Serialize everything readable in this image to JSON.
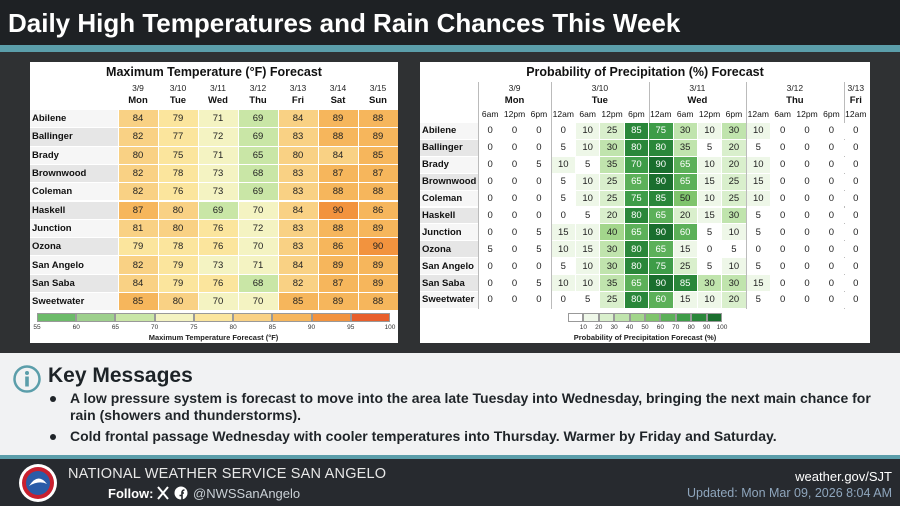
{
  "header": {
    "title": "Daily High Temperatures and Rain Chances This Week"
  },
  "temperature": {
    "title": "Maximum Temperature (°F) Forecast",
    "dates": [
      "3/9",
      "3/10",
      "3/11",
      "3/12",
      "3/13",
      "3/14",
      "3/15"
    ],
    "days": [
      "Mon",
      "Tue",
      "Wed",
      "Thu",
      "Fri",
      "Sat",
      "Sun"
    ],
    "cities": [
      "Abilene",
      "Ballinger",
      "Brady",
      "Brownwood",
      "Coleman",
      "Haskell",
      "Junction",
      "Ozona",
      "San Angelo",
      "San Saba",
      "Sweetwater"
    ],
    "rows": [
      [
        84,
        79,
        71,
        69,
        84,
        89,
        88
      ],
      [
        82,
        77,
        72,
        69,
        83,
        88,
        89
      ],
      [
        80,
        75,
        71,
        65,
        80,
        84,
        85
      ],
      [
        82,
        78,
        73,
        68,
        83,
        87,
        87
      ],
      [
        82,
        76,
        73,
        69,
        83,
        88,
        88
      ],
      [
        87,
        80,
        69,
        70,
        84,
        90,
        86
      ],
      [
        81,
        80,
        76,
        72,
        83,
        88,
        89
      ],
      [
        79,
        78,
        76,
        70,
        83,
        86,
        90
      ],
      [
        82,
        79,
        73,
        71,
        84,
        89,
        89
      ],
      [
        84,
        79,
        76,
        68,
        82,
        87,
        89
      ],
      [
        85,
        80,
        70,
        70,
        85,
        89,
        88
      ]
    ],
    "colorbar": {
      "lim": [
        55,
        100
      ],
      "ticks": [
        55,
        60,
        65,
        70,
        75,
        80,
        85,
        90,
        95,
        100
      ],
      "colors": [
        "#6dbb6a",
        "#9ed08d",
        "#c9e6a6",
        "#f4f3c2",
        "#fbe59d",
        "#f9d184",
        "#f6b65c",
        "#f2933e",
        "#e85f2c"
      ],
      "label": "Maximum Temperature Forecast (°F)"
    }
  },
  "precipitation": {
    "title": "Probability of Precipitation (%) Forecast",
    "groups": [
      {
        "date": "3/9",
        "day": "Mon",
        "times": [
          "6am",
          "12pm",
          "6pm"
        ]
      },
      {
        "date": "3/10",
        "day": "Tue",
        "times": [
          "12am",
          "6am",
          "12pm",
          "6pm"
        ]
      },
      {
        "date": "3/11",
        "day": "Wed",
        "times": [
          "12am",
          "6am",
          "12pm",
          "6pm"
        ]
      },
      {
        "date": "3/12",
        "day": "Thu",
        "times": [
          "12am",
          "6am",
          "12pm",
          "6pm"
        ]
      },
      {
        "date": "3/13",
        "day": "Fri",
        "times": [
          "12am"
        ]
      }
    ],
    "cities": [
      "Abilene",
      "Ballinger",
      "Brady",
      "Brownwood",
      "Coleman",
      "Haskell",
      "Junction",
      "Ozona",
      "San Angelo",
      "San Saba",
      "Sweetwater"
    ],
    "rows": [
      [
        0,
        0,
        0,
        0,
        10,
        25,
        85,
        75,
        30,
        10,
        30,
        10,
        0,
        0,
        0,
        0
      ],
      [
        0,
        0,
        0,
        5,
        10,
        30,
        80,
        80,
        35,
        5,
        20,
        5,
        0,
        0,
        0,
        0
      ],
      [
        0,
        0,
        5,
        10,
        5,
        35,
        70,
        90,
        65,
        10,
        20,
        10,
        0,
        0,
        0,
        0
      ],
      [
        0,
        0,
        0,
        5,
        10,
        25,
        65,
        90,
        65,
        15,
        25,
        15,
        0,
        0,
        0,
        0
      ],
      [
        0,
        0,
        0,
        5,
        10,
        25,
        75,
        85,
        50,
        10,
        25,
        10,
        0,
        0,
        0,
        0
      ],
      [
        0,
        0,
        0,
        0,
        5,
        20,
        80,
        65,
        20,
        15,
        30,
        5,
        0,
        0,
        0,
        0
      ],
      [
        0,
        0,
        5,
        15,
        10,
        40,
        65,
        90,
        60,
        5,
        10,
        5,
        0,
        0,
        0,
        0
      ],
      [
        5,
        0,
        5,
        10,
        15,
        30,
        80,
        65,
        15,
        0,
        5,
        0,
        0,
        0,
        0,
        0
      ],
      [
        0,
        0,
        0,
        5,
        10,
        30,
        80,
        75,
        25,
        5,
        10,
        5,
        0,
        0,
        0,
        0
      ],
      [
        0,
        0,
        5,
        10,
        10,
        35,
        65,
        90,
        85,
        30,
        30,
        15,
        0,
        0,
        0,
        0
      ],
      [
        0,
        0,
        0,
        0,
        5,
        25,
        80,
        60,
        15,
        10,
        20,
        5,
        0,
        0,
        0,
        0
      ]
    ],
    "colorbar": {
      "lim": [
        0,
        100
      ],
      "ticks": [
        10,
        20,
        30,
        40,
        50,
        60,
        70,
        80,
        90,
        100
      ],
      "colors": [
        "#ffffff",
        "#eef7e8",
        "#d9efcc",
        "#c0e4ad",
        "#a3d68c",
        "#7fc46c",
        "#5cb059",
        "#3e9c48",
        "#2a873a",
        "#1a6e2e"
      ],
      "label": "Probability of Precipitation Forecast (%)"
    }
  },
  "key_messages": {
    "title": "Key Messages",
    "items": [
      "A low pressure system is forecast to move into the area late Tuesday into Wednesday, bringing the next main chance for rain (showers and thunderstorms).",
      "Cold frontal passage Wednesday with cooler temperatures into Thursday. Warmer by Friday and Saturday."
    ]
  },
  "footer": {
    "office": "NATIONAL WEATHER SERVICE SAN ANGELO",
    "follow": "Follow:",
    "handle": "@NWSSanAngelo",
    "website": "weather.gov/SJT",
    "updated": "Updated: Mon Mar 09, 2026 8:04 AM"
  }
}
